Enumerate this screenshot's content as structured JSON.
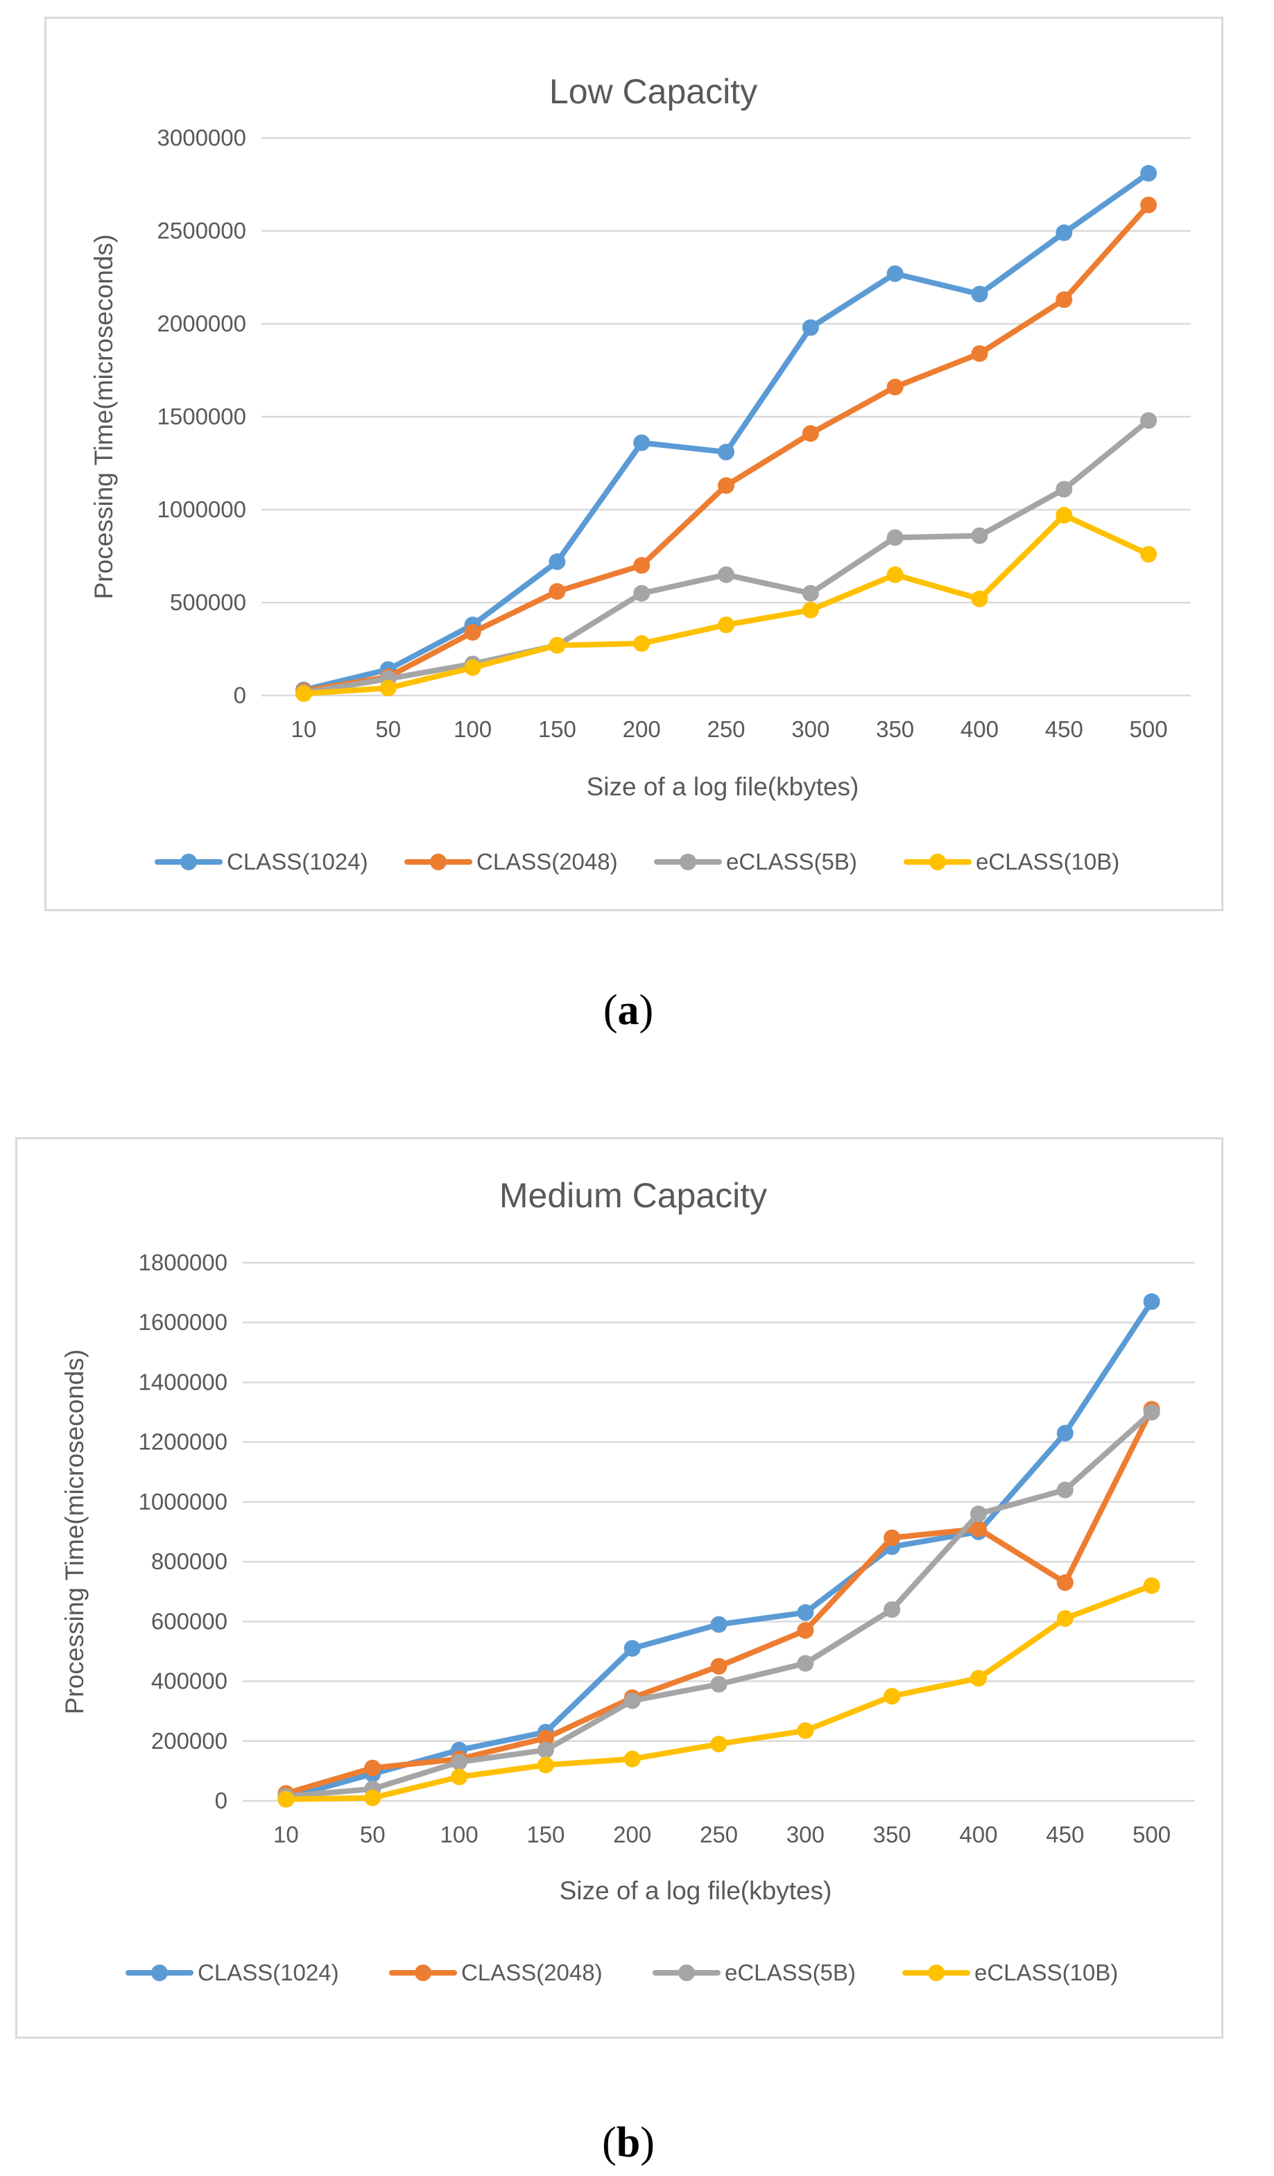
{
  "captions": [
    "a",
    "b"
  ],
  "chart_data": [
    {
      "type": "line",
      "title": "Low Capacity",
      "xlabel": "Size of a log file(kbytes)",
      "ylabel": "Processing Time(microseconds)",
      "categories": [
        "10",
        "50",
        "100",
        "150",
        "200",
        "250",
        "300",
        "350",
        "400",
        "450",
        "500"
      ],
      "ylim": [
        0,
        3000000
      ],
      "yticks": [
        "0",
        "500000",
        "1000000",
        "1500000",
        "2000000",
        "2500000",
        "3000000"
      ],
      "grid": true,
      "legend": "bottom",
      "series": [
        {
          "name": "CLASS(1024)",
          "color": "#5b9bd5",
          "values": [
            30000,
            140000,
            380000,
            720000,
            1360000,
            1310000,
            1980000,
            2270000,
            2160000,
            2490000,
            2810000
          ]
        },
        {
          "name": "CLASS(2048)",
          "color": "#ed7d31",
          "values": [
            25000,
            100000,
            340000,
            560000,
            700000,
            1130000,
            1410000,
            1660000,
            1840000,
            2130000,
            2640000
          ]
        },
        {
          "name": "eCLASS(5B)",
          "color": "#a5a5a5",
          "values": [
            15000,
            90000,
            170000,
            270000,
            550000,
            650000,
            550000,
            850000,
            860000,
            1110000,
            1480000
          ]
        },
        {
          "name": "eCLASS(10B)",
          "color": "#ffc000",
          "values": [
            10000,
            40000,
            150000,
            270000,
            280000,
            380000,
            460000,
            650000,
            520000,
            970000,
            760000
          ]
        }
      ]
    },
    {
      "type": "line",
      "title": "Medium Capacity",
      "xlabel": "Size of a log file(kbytes)",
      "ylabel": "Processing Time(microseconds)",
      "categories": [
        "10",
        "50",
        "100",
        "150",
        "200",
        "250",
        "300",
        "350",
        "400",
        "450",
        "500"
      ],
      "ylim": [
        0,
        1800000
      ],
      "yticks": [
        "0",
        "200000",
        "400000",
        "600000",
        "800000",
        "1000000",
        "1200000",
        "1400000",
        "1600000",
        "1800000"
      ],
      "grid": true,
      "legend": "bottom",
      "series": [
        {
          "name": "CLASS(1024)",
          "color": "#5b9bd5",
          "values": [
            10000,
            90000,
            170000,
            230000,
            510000,
            590000,
            630000,
            850000,
            900000,
            1230000,
            1670000
          ]
        },
        {
          "name": "CLASS(2048)",
          "color": "#ed7d31",
          "values": [
            25000,
            110000,
            140000,
            210000,
            345000,
            450000,
            570000,
            880000,
            910000,
            730000,
            1310000
          ]
        },
        {
          "name": "eCLASS(5B)",
          "color": "#a5a5a5",
          "values": [
            15000,
            40000,
            130000,
            170000,
            335000,
            390000,
            460000,
            640000,
            960000,
            1040000,
            1300000
          ]
        },
        {
          "name": "eCLASS(10B)",
          "color": "#ffc000",
          "values": [
            5000,
            10000,
            80000,
            120000,
            140000,
            190000,
            235000,
            350000,
            410000,
            610000,
            720000
          ]
        }
      ]
    }
  ]
}
